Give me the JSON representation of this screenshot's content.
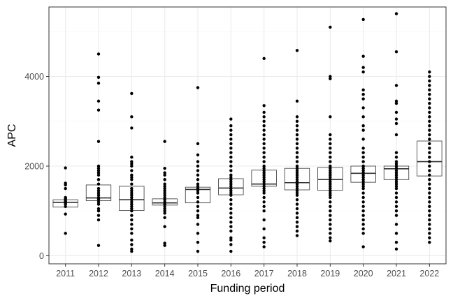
{
  "chart_data": {
    "type": "box",
    "xlabel": "Funding period",
    "ylabel": "APC",
    "categories": [
      "2011",
      "2012",
      "2013",
      "2014",
      "2015",
      "2016",
      "2017",
      "2018",
      "2019",
      "2020",
      "2021",
      "2022"
    ],
    "ylim": [
      -180,
      5550
    ],
    "y_ticks": [
      0,
      2000,
      4000
    ],
    "y_tick_labels": [
      "0",
      "2000",
      "4000"
    ],
    "grid": true,
    "boxes": [
      {
        "category": "2011",
        "q1": 1085,
        "median": 1190,
        "q3": 1250,
        "whisker_low": 1085,
        "whisker_high": 1250
      },
      {
        "category": "2012",
        "q1": 1230,
        "median": 1290,
        "q3": 1580,
        "whisker_low": 1230,
        "whisker_high": 1580
      },
      {
        "category": "2013",
        "q1": 1010,
        "median": 1250,
        "q3": 1550,
        "whisker_low": 1010,
        "whisker_high": 1550
      },
      {
        "category": "2014",
        "q1": 1130,
        "median": 1180,
        "q3": 1270,
        "whisker_low": 1130,
        "whisker_high": 1270
      },
      {
        "category": "2015",
        "q1": 1180,
        "median": 1480,
        "q3": 1530,
        "whisker_low": 1180,
        "whisker_high": 1530
      },
      {
        "category": "2016",
        "q1": 1360,
        "median": 1510,
        "q3": 1720,
        "whisker_low": 1360,
        "whisker_high": 1720
      },
      {
        "category": "2017",
        "q1": 1550,
        "median": 1600,
        "q3": 1910,
        "whisker_low": 1550,
        "whisker_high": 1910
      },
      {
        "category": "2018",
        "q1": 1470,
        "median": 1630,
        "q3": 1950,
        "whisker_low": 1470,
        "whisker_high": 1950
      },
      {
        "category": "2019",
        "q1": 1460,
        "median": 1700,
        "q3": 1970,
        "whisker_low": 1460,
        "whisker_high": 1970
      },
      {
        "category": "2020",
        "q1": 1640,
        "median": 1840,
        "q3": 2000,
        "whisker_low": 1640,
        "whisker_high": 2000
      },
      {
        "category": "2021",
        "q1": 1700,
        "median": 1940,
        "q3": 2000,
        "whisker_low": 1700,
        "whisker_high": 2000
      },
      {
        "category": "2022",
        "q1": 1780,
        "median": 2100,
        "q3": 2560,
        "whisker_low": 1780,
        "whisker_high": 2560
      }
    ],
    "points": [
      {
        "category": "2011",
        "values": [
          500,
          930,
          1100,
          1150,
          1170,
          1200,
          1220,
          1250,
          1280,
          1300,
          1500,
          1580,
          1620,
          1960
        ]
      },
      {
        "category": "2012",
        "values": [
          230,
          800,
          900,
          1000,
          1050,
          1150,
          1200,
          1250,
          1280,
          1300,
          1350,
          1400,
          1450,
          1500,
          1600,
          1700,
          1800,
          1850,
          1900,
          1950,
          2000,
          2550,
          3250,
          3450,
          3850,
          3980,
          4500
        ]
      },
      {
        "category": "2013",
        "values": [
          100,
          150,
          250,
          350,
          500,
          600,
          700,
          800,
          900,
          1000,
          1050,
          1100,
          1150,
          1200,
          1250,
          1300,
          1350,
          1400,
          1450,
          1500,
          1600,
          1700,
          1750,
          1800,
          1900,
          2000,
          2050,
          2100,
          2200,
          2850,
          3100,
          3620
        ]
      },
      {
        "category": "2014",
        "values": [
          230,
          280,
          650,
          850,
          950,
          1000,
          1050,
          1100,
          1150,
          1200,
          1250,
          1300,
          1350,
          1400,
          1450,
          1500,
          1550,
          1600,
          1700,
          1800,
          1850,
          1950,
          2550
        ]
      },
      {
        "category": "2015",
        "values": [
          100,
          300,
          500,
          700,
          850,
          900,
          1000,
          1100,
          1200,
          1300,
          1400,
          1450,
          1500,
          1550,
          1600,
          1700,
          1800,
          1900,
          2000,
          2100,
          2250,
          2500,
          3750
        ]
      },
      {
        "category": "2016",
        "values": [
          100,
          250,
          350,
          400,
          550,
          650,
          750,
          850,
          950,
          1050,
          1150,
          1250,
          1350,
          1400,
          1450,
          1500,
          1550,
          1600,
          1650,
          1700,
          1750,
          1800,
          1900,
          2000,
          2100,
          2200,
          2300,
          2400,
          2500,
          2600,
          2700,
          2800,
          2900,
          3050
        ]
      },
      {
        "category": "2017",
        "values": [
          200,
          300,
          400,
          600,
          800,
          1000,
          1100,
          1200,
          1300,
          1400,
          1450,
          1500,
          1550,
          1600,
          1650,
          1700,
          1750,
          1800,
          1850,
          1900,
          1950,
          2000,
          2100,
          2200,
          2300,
          2400,
          2500,
          2600,
          2700,
          2800,
          2900,
          3000,
          3100,
          3200,
          3350,
          4400
        ]
      },
      {
        "category": "2018",
        "values": [
          450,
          550,
          650,
          750,
          850,
          950,
          1050,
          1150,
          1250,
          1350,
          1400,
          1450,
          1500,
          1550,
          1600,
          1650,
          1700,
          1750,
          1800,
          1850,
          1900,
          1950,
          2000,
          2100,
          2200,
          2300,
          2400,
          2500,
          2600,
          2700,
          2800,
          2900,
          3000,
          3100,
          3450,
          4580
        ]
      },
      {
        "category": "2019",
        "values": [
          330,
          400,
          500,
          600,
          700,
          800,
          900,
          1000,
          1100,
          1200,
          1300,
          1350,
          1400,
          1450,
          1500,
          1550,
          1600,
          1650,
          1700,
          1750,
          1800,
          1850,
          1900,
          1950,
          2000,
          2100,
          2200,
          2300,
          2400,
          2500,
          2600,
          2700,
          3100,
          3950,
          4000,
          5100
        ]
      },
      {
        "category": "2020",
        "values": [
          200,
          500,
          600,
          700,
          800,
          900,
          1000,
          1100,
          1200,
          1300,
          1400,
          1500,
          1550,
          1600,
          1650,
          1700,
          1750,
          1800,
          1850,
          1900,
          1950,
          2000,
          2100,
          2200,
          2300,
          2400,
          2600,
          2800,
          2900,
          3100,
          3300,
          3500,
          3600,
          3700,
          4100,
          4200,
          4450,
          5270
        ]
      },
      {
        "category": "2021",
        "values": [
          150,
          300,
          500,
          700,
          900,
          1000,
          1100,
          1200,
          1300,
          1400,
          1500,
          1550,
          1600,
          1650,
          1700,
          1750,
          1800,
          1850,
          1900,
          1950,
          2000,
          2050,
          2100,
          2200,
          2300,
          2700,
          2950,
          3050,
          3200,
          3400,
          3450,
          3800,
          4550,
          5400
        ]
      },
      {
        "category": "2022",
        "values": [
          300,
          400,
          500,
          600,
          700,
          800,
          900,
          1000,
          1100,
          1200,
          1300,
          1400,
          1500,
          1600,
          1700,
          1800,
          1900,
          2000,
          2100,
          2200,
          2300,
          2400,
          2500,
          2600,
          2700,
          2800,
          2900,
          3000,
          3100,
          3200,
          3300,
          3400,
          3500,
          3600,
          3700,
          3800,
          3900,
          4000,
          4100
        ]
      }
    ],
    "colors": {
      "panel_border": "#333333",
      "grid_major": "#ebebeb",
      "grid_minor": "#f4f4f4",
      "points": "#000000",
      "box_outline": "#333333"
    }
  }
}
